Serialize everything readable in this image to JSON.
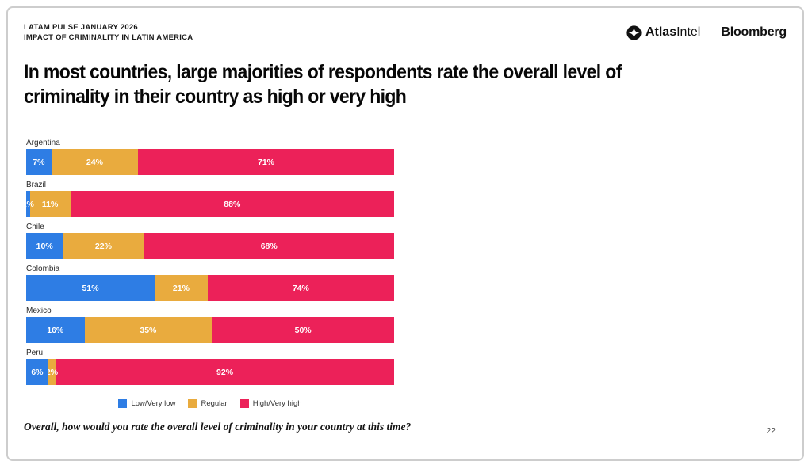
{
  "header": {
    "kicker_line1": "LATAM PULSE JANUARY 2026",
    "kicker_line2": "IMPACT OF CRIMINALITY IN LATIN AMERICA",
    "logo_atlas_bold": "Atlas",
    "logo_atlas_regular": "Intel",
    "logo_bloomberg": "Bloomberg"
  },
  "title": {
    "line1": "In most countries, large majorities of respondents rate the overall level of",
    "line2": "criminality in their country as high or very high"
  },
  "chart_data": {
    "type": "bar",
    "orientation": "horizontal-stacked",
    "title": "",
    "categories": [
      "Argentina",
      "Brazil",
      "Chile",
      "Colombia",
      "Mexico",
      "Peru"
    ],
    "series": [
      {
        "name": "Low/Very low",
        "color": "#2E7DE4",
        "values": [
          7,
          1,
          10,
          51,
          16,
          6
        ]
      },
      {
        "name": "Regular",
        "color": "#E9AB3E",
        "values": [
          24,
          11,
          22,
          21,
          35,
          2
        ]
      },
      {
        "name": "High/Very high",
        "color": "#EC2159",
        "values": [
          71,
          88,
          68,
          74,
          50,
          92
        ]
      }
    ],
    "value_suffix": "%",
    "legend_position": "bottom",
    "normalize_to_row_sum": true,
    "grid": false
  },
  "footer": {
    "question": "Overall, how would you rate the overall level of criminality in your country at this time?",
    "page_number": "22"
  }
}
